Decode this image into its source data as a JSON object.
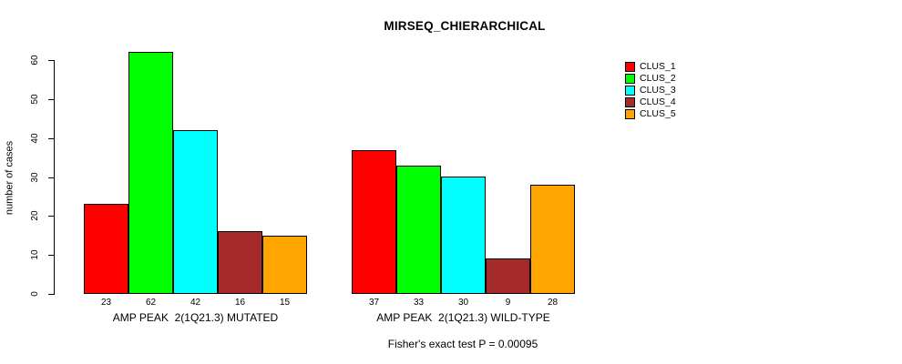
{
  "title": "MIRSEQ_CHIERARCHICAL",
  "footnote": "Fisher's exact test P = 0.00095",
  "chart_data": {
    "type": "bar",
    "title": "MIRSEQ_CHIERARCHICAL",
    "xlabel": "",
    "ylabel": "number of cases",
    "ylim": [
      0,
      60
    ],
    "yticks": [
      0,
      10,
      20,
      30,
      40,
      50,
      60
    ],
    "grid": false,
    "legend_position": "right",
    "bar_border_color": "#000000",
    "categories": [
      "AMP PEAK  2(1Q21.3) MUTATED",
      "AMP PEAK  2(1Q21.3) WILD-TYPE"
    ],
    "groups": [
      {
        "label": "AMP PEAK  2(1Q21.3) MUTATED",
        "values": [
          23,
          62,
          42,
          16,
          15
        ]
      },
      {
        "label": "AMP PEAK  2(1Q21.3) WILD-TYPE",
        "values": [
          37,
          33,
          30,
          9,
          28
        ]
      }
    ],
    "series": [
      {
        "name": "CLUS_1",
        "color": "#FF0000"
      },
      {
        "name": "CLUS_2",
        "color": "#00FF00"
      },
      {
        "name": "CLUS_3",
        "color": "#00FFFF"
      },
      {
        "name": "CLUS_4",
        "color": "#A52A2A"
      },
      {
        "name": "CLUS_5",
        "color": "#FFA500"
      }
    ],
    "annotation": "Fisher's exact test P = 0.00095"
  }
}
